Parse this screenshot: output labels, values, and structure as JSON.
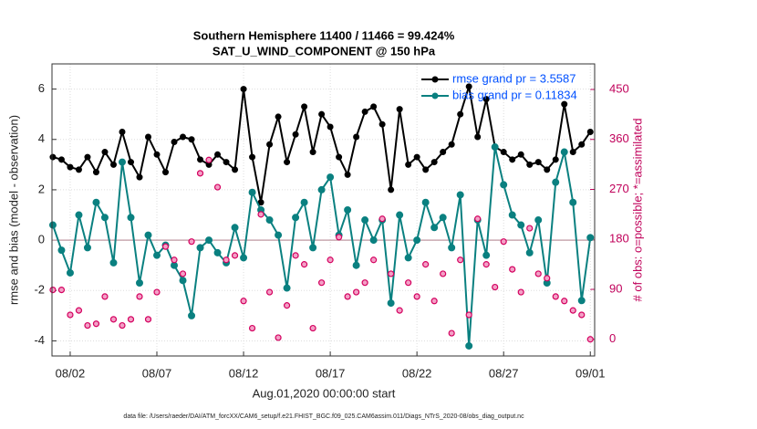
{
  "chart_data": {
    "type": "line",
    "title": "Southern Hemisphere 11400 / 11466 = 99.424%",
    "subtitle": "SAT_U_WIND_COMPONENT @ 150 hPa",
    "xlabel": "Aug.01,2020 00:00:00 start",
    "ylabel": "rmse and bias (model - observation)",
    "y2label": "# of obs: o=possible; *=assimilated",
    "footnote": "data file: /Users/raeder/DAI/ATM_forcXX/CAM6_setup/f.e21.FHIST_BGC.f09_025.CAM6assim.011/Diags_NTrS_2020-08/obs_diag_output.nc",
    "x": [
      0,
      0.5,
      1,
      1.5,
      2,
      2.5,
      3,
      3.5,
      4,
      4.5,
      5,
      5.5,
      6,
      6.5,
      7,
      7.5,
      8,
      8.5,
      9,
      9.5,
      10,
      10.5,
      11,
      11.5,
      12,
      12.5,
      13,
      13.5,
      14,
      14.5,
      15,
      15.5,
      16,
      16.5,
      17,
      17.5,
      18,
      18.5,
      19,
      19.5,
      20,
      20.5,
      21,
      21.5,
      22,
      22.5,
      23,
      23.5,
      24,
      24.5,
      25,
      25.5,
      26,
      26.5,
      27,
      27.5,
      28,
      28.5,
      29,
      29.5,
      30,
      30.5,
      31
    ],
    "xlim": [
      -0.05,
      31.25
    ],
    "xticks": [
      {
        "value": 1,
        "label": "08/02"
      },
      {
        "value": 6,
        "label": "08/07"
      },
      {
        "value": 11,
        "label": "08/12"
      },
      {
        "value": 16,
        "label": "08/17"
      },
      {
        "value": 21,
        "label": "08/22"
      },
      {
        "value": 26,
        "label": "08/27"
      },
      {
        "value": 31,
        "label": "09/01"
      }
    ],
    "ylim": [
      -4.6,
      7
    ],
    "yticks": [
      -4,
      -2,
      0,
      2,
      4,
      6
    ],
    "y2lim": [
      -30,
      496
    ],
    "y2ticks": [
      0,
      90,
      180,
      270,
      360,
      450
    ],
    "grid": true,
    "legend": "upper right",
    "series": [
      {
        "name": "rmse grand pr = 3.5587",
        "color": "#000000",
        "marker": "asterisk",
        "values": [
          3.3,
          3.2,
          2.9,
          2.8,
          3.3,
          2.7,
          3.5,
          3.0,
          4.3,
          3.1,
          2.5,
          4.1,
          3.4,
          2.7,
          3.9,
          4.1,
          4.0,
          3.2,
          3.0,
          3.4,
          3.1,
          2.8,
          6.0,
          3.3,
          1.5,
          3.8,
          4.9,
          3.1,
          4.2,
          5.3,
          3.5,
          5.0,
          4.5,
          3.3,
          2.6,
          4.1,
          5.1,
          5.3,
          4.6,
          2.0,
          5.2,
          3.0,
          3.3,
          2.8,
          3.1,
          3.5,
          3.8,
          5.0,
          6.1,
          4.1,
          5.6,
          3.7,
          3.5,
          3.2,
          3.4,
          3.0,
          3.1,
          2.8,
          3.2,
          5.4,
          3.5,
          3.8,
          4.3
        ]
      },
      {
        "name": "bias grand pr = 0.11834",
        "color": "#0a8080",
        "marker": "dot",
        "values": [
          0.6,
          -0.4,
          -1.3,
          1.0,
          -0.3,
          1.5,
          0.9,
          -0.9,
          3.1,
          0.9,
          -1.7,
          0.2,
          -0.6,
          -0.2,
          -1.0,
          -1.6,
          -3.0,
          -0.3,
          0.0,
          -0.5,
          -0.9,
          0.5,
          -0.7,
          1.9,
          1.2,
          0.8,
          0.2,
          -1.9,
          0.9,
          1.5,
          -0.3,
          2.0,
          2.5,
          0.2,
          1.2,
          -1.0,
          0.8,
          0.0,
          0.8,
          -2.5,
          1.0,
          -0.7,
          0.0,
          1.5,
          0.5,
          0.9,
          -0.3,
          1.8,
          -4.2,
          0.8,
          -0.6,
          3.7,
          2.2,
          1.0,
          0.6,
          -0.5,
          0.8,
          -1.7,
          2.3,
          3.5,
          1.5,
          -2.4,
          0.1
        ]
      },
      {
        "color": "#d4005f",
        "axis": "y2",
        "marker": "circle-star",
        "values": [
          89,
          89,
          44,
          52,
          25,
          28,
          77,
          36,
          25,
          36,
          77,
          36,
          85,
          167,
          143,
          118,
          176,
          299,
          323,
          274,
          143,
          151,
          69,
          20,
          225,
          85,
          3,
          61,
          151,
          135,
          20,
          102,
          143,
          184,
          77,
          85,
          102,
          143,
          217,
          118,
          52,
          102,
          77,
          135,
          69,
          118,
          11,
          143,
          44,
          217,
          135,
          94,
          176,
          126,
          85,
          200,
          118,
          110,
          77,
          69,
          52,
          44,
          0
        ]
      }
    ]
  }
}
